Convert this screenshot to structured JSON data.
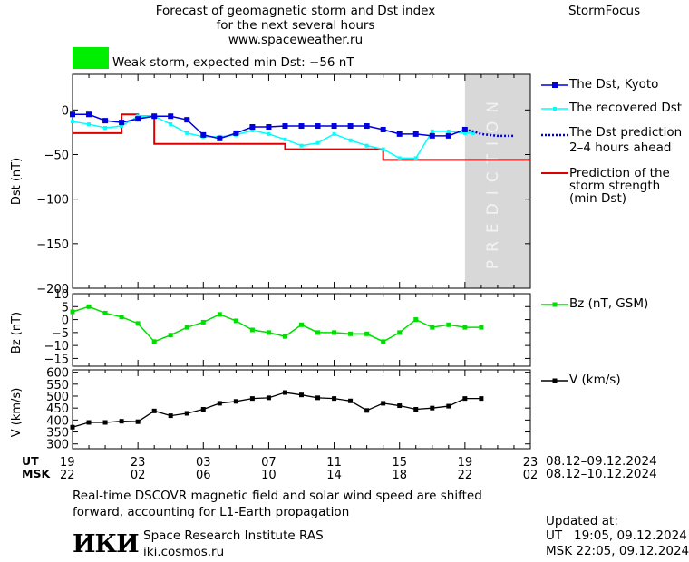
{
  "header": {
    "title_line1": "Forecast of geomagnetic storm and Dst index",
    "title_line2": "for the next several hours",
    "title_line3": "www.spaceweather.ru",
    "brand": "StormFocus",
    "status_text": "Weak storm, expected min Dst: −56 nT",
    "status_color": "#00ee00"
  },
  "colors": {
    "dst_kyoto": "#0000dd",
    "dst_recovered": "#00ffff",
    "dst_prediction": "#0000dd",
    "storm_strength": "#dd0000",
    "bz": "#00dd00",
    "v": "#000000",
    "prediction_zone": "#d8d8d8"
  },
  "prediction_label": "PREDICTION",
  "legend": {
    "dst_kyoto": "The Dst, Kyoto",
    "dst_recovered": "The recovered Dst",
    "dst_prediction_l1": "The Dst prediction",
    "dst_prediction_l2": "2–4 hours ahead",
    "storm_l1": "Prediction of the",
    "storm_l2": "storm strength",
    "storm_l3": "(min Dst)",
    "bz": "Bz (nT, GSM)",
    "v": "V (km/s)"
  },
  "time_axis": {
    "ut_label": "UT",
    "msk_label": "MSK",
    "ut_ticks": [
      "19",
      "23",
      "03",
      "07",
      "11",
      "15",
      "19",
      "23"
    ],
    "msk_ticks": [
      "22",
      "02",
      "06",
      "10",
      "14",
      "18",
      "22",
      "02"
    ],
    "ut_range": "08.12–09.12.2024",
    "msk_range": "08.12–10.12.2024"
  },
  "chart_data": [
    {
      "type": "line",
      "ylabel": "Dst (nT)",
      "ylim": [
        -200,
        40
      ],
      "xlim": [
        0,
        28
      ],
      "yticks": [
        0,
        -50,
        -100,
        -150,
        -200
      ],
      "ytick_labels": [
        "0",
        "−50",
        "−100",
        "−150",
        "−200"
      ],
      "prediction_zone_x": [
        24,
        28
      ],
      "series": [
        {
          "name": "The Dst, Kyoto",
          "x": [
            0,
            1,
            2,
            3,
            4,
            5,
            6,
            7,
            8,
            9,
            10,
            11,
            12,
            13,
            14,
            15,
            16,
            17,
            18,
            19,
            20,
            21,
            22,
            23,
            24
          ],
          "y": [
            -5,
            -5,
            -12,
            -14,
            -10,
            -7,
            -7,
            -11,
            -28,
            -32,
            -26,
            -19,
            -19,
            -18,
            -18,
            -18,
            -18,
            -18,
            -18,
            -22,
            -27,
            -27,
            -29,
            -29,
            -22
          ]
        },
        {
          "name": "The recovered Dst",
          "x": [
            0,
            1,
            2,
            3,
            4,
            5,
            6,
            7,
            8,
            9,
            10,
            11,
            12,
            13,
            14,
            15,
            16,
            17,
            18,
            19,
            20,
            21,
            22,
            23,
            24,
            24.5
          ],
          "y": [
            -13,
            -16,
            -20,
            -18,
            -7,
            -7,
            -16,
            -26,
            -30,
            -30,
            -28,
            -23,
            -27,
            -33,
            -40,
            -37,
            -27,
            -34,
            -40,
            -44,
            -54,
            -54,
            -24,
            -24,
            -26,
            -26
          ]
        },
        {
          "name": "The Dst prediction 2–4 hours ahead",
          "x": [
            24,
            24.5,
            25,
            26,
            27
          ],
          "y": [
            -22,
            -24,
            -27,
            -29,
            -29
          ]
        },
        {
          "name": "Prediction of the storm strength (min Dst)",
          "step": true,
          "x": [
            0,
            1,
            2,
            3,
            4,
            5,
            12,
            13,
            18,
            19,
            28
          ],
          "y": [
            -26,
            -26,
            -26,
            -5,
            -7,
            -38,
            -38,
            -44,
            -44,
            -56,
            -56
          ]
        }
      ]
    },
    {
      "type": "line",
      "ylabel": "Bz (nT)",
      "ylim": [
        -18,
        10
      ],
      "xlim": [
        0,
        28
      ],
      "yticks": [
        10,
        5,
        0,
        -5,
        -10,
        -15
      ],
      "ytick_labels": [
        "10",
        "5",
        "0",
        "−5",
        "−10",
        "−15"
      ],
      "series": [
        {
          "name": "Bz (nT, GSM)",
          "x": [
            0,
            1,
            2,
            3,
            4,
            5,
            6,
            7,
            8,
            9,
            10,
            11,
            12,
            13,
            14,
            15,
            16,
            17,
            18,
            19,
            20,
            21,
            22,
            23,
            24,
            25
          ],
          "y": [
            3,
            5,
            2.5,
            1,
            -1.5,
            -8.5,
            -6,
            -3,
            -1,
            2,
            -0.5,
            -4,
            -5,
            -6.5,
            -2,
            -5,
            -5,
            -5.5,
            -5.5,
            -8.5,
            -5,
            0,
            -3,
            -2,
            -3,
            -3
          ]
        }
      ]
    },
    {
      "type": "line",
      "ylabel": "V (km/s)",
      "ylim": [
        280,
        610
      ],
      "xlim": [
        0,
        28
      ],
      "yticks": [
        600,
        550,
        500,
        450,
        400,
        350,
        300
      ],
      "ytick_labels": [
        "600",
        "550",
        "500",
        "450",
        "400",
        "350",
        "300"
      ],
      "series": [
        {
          "name": "V (km/s)",
          "x": [
            0,
            1,
            2,
            3,
            4,
            5,
            6,
            7,
            8,
            9,
            10,
            11,
            12,
            13,
            14,
            15,
            16,
            17,
            18,
            19,
            20,
            21,
            22,
            23,
            24,
            25
          ],
          "y": [
            370,
            390,
            390,
            395,
            393,
            438,
            418,
            428,
            445,
            470,
            478,
            490,
            493,
            515,
            505,
            493,
            490,
            480,
            440,
            470,
            460,
            445,
            450,
            458,
            490,
            490
          ]
        }
      ]
    }
  ],
  "footer": {
    "note_line1": "Real-time DSCOVR magnetic field and solar wind speed are shifted",
    "note_line2": "forward, accounting for L1-Earth propagation",
    "logo_text": "ИКИ",
    "institute": "Space Research Institute RAS",
    "institute_url": "iki.cosmos.ru",
    "updated_label": "Updated at:",
    "updated_ut": "UT   19:05, 09.12.2024",
    "updated_msk": "MSK 22:05, 09.12.2024"
  }
}
